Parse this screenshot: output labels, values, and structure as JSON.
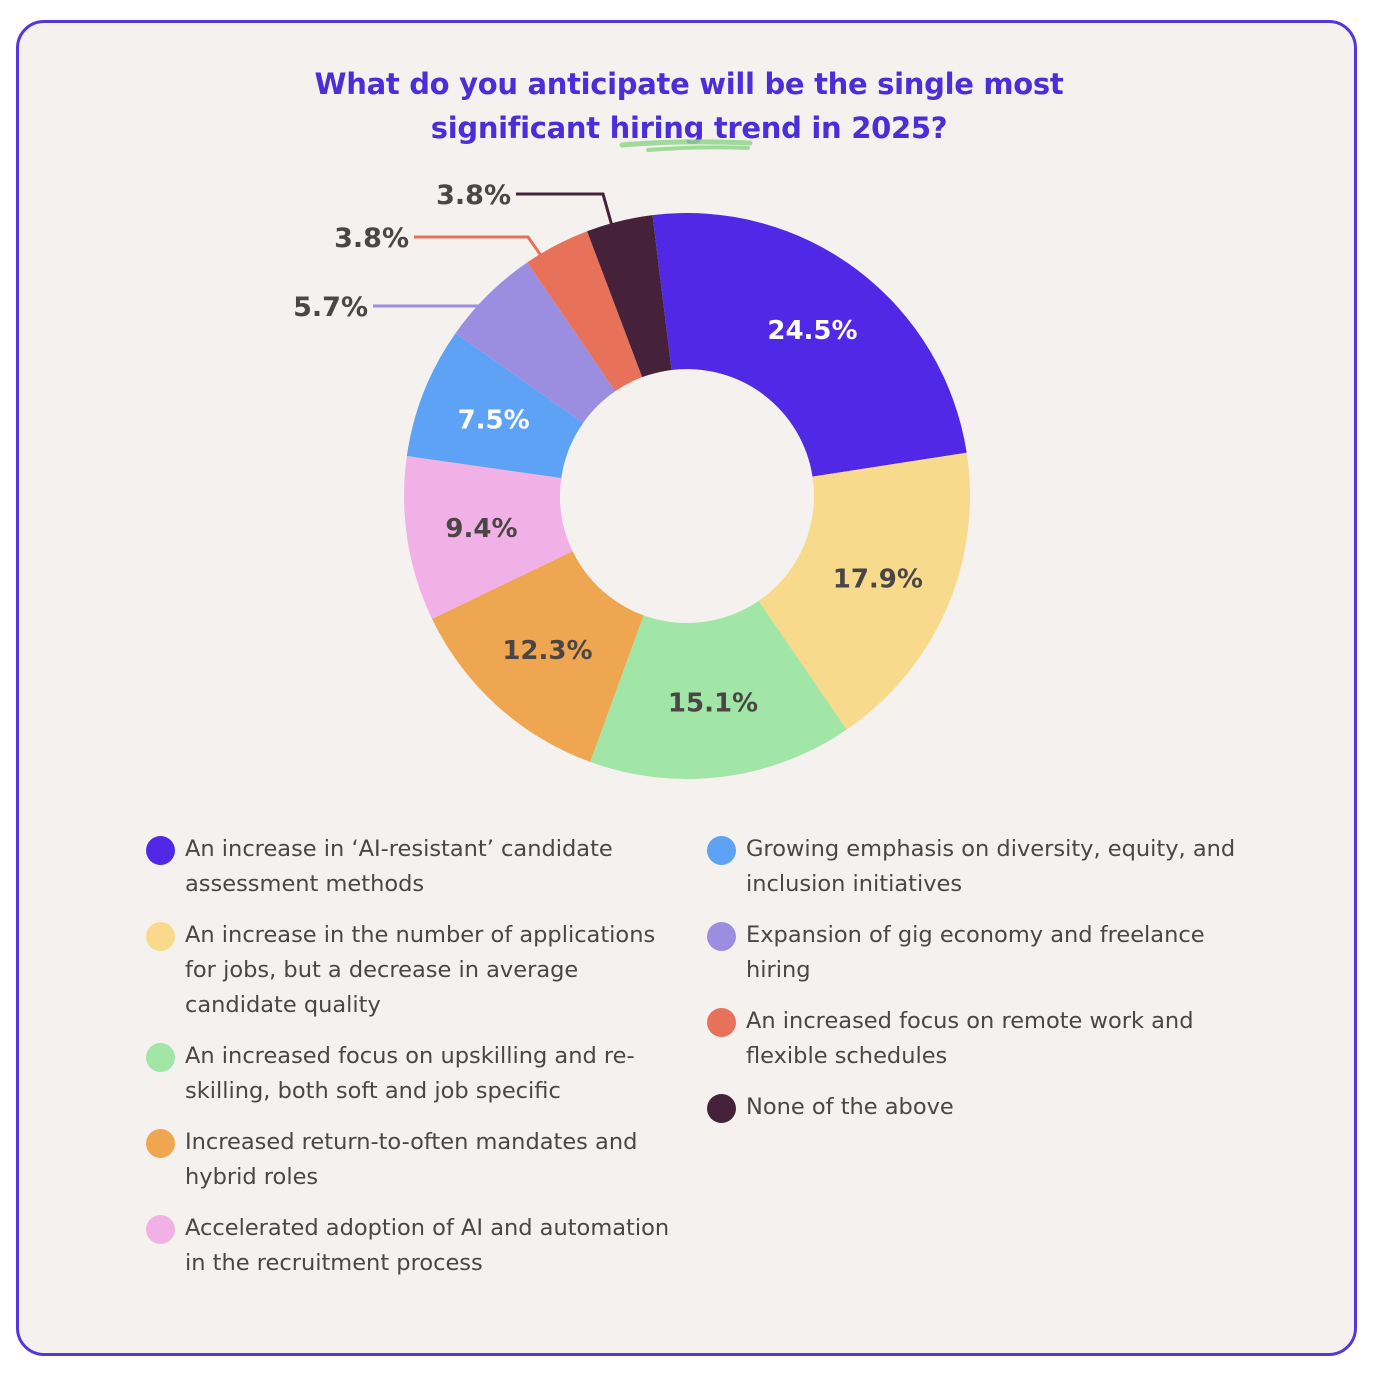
{
  "title": {
    "line1": "What do you anticipate will be the single most",
    "line2_prefix": "significant ",
    "line2_highlight": "hiring trend",
    "line2_suffix": " in 2025?"
  },
  "colors": {
    "title": "#4a2fd8",
    "border": "#5436dc",
    "background": "#f4f1ee",
    "underline": "#8fd68a"
  },
  "chart_data": {
    "type": "pie",
    "subtype": "donut",
    "title": "What do you anticipate will be the single most significant hiring trend in 2025?",
    "categories": [
      "An increase in 'AI-resistant' candidate assessment methods",
      "An increase in the number of applications for jobs, but a decrease in average candidate quality",
      "An increased focus on upskilling and re-skilling, both soft and job specific",
      "Increased return-to-often mandates and hybrid roles",
      "Accelerated adoption of AI and automation in the recruitment process",
      "Growing emphasis on diversity, equity, and inclusion initiatives",
      "Expansion of gig economy and freelance hiring",
      "An increased focus on remote work and flexible schedules",
      "None of the above"
    ],
    "values": [
      24.5,
      17.9,
      15.1,
      12.3,
      9.4,
      7.5,
      5.7,
      3.8,
      3.8
    ],
    "labels": [
      "24.5%",
      "17.9%",
      "15.1%",
      "12.3%",
      "9.4%",
      "7.5%",
      "5.7%",
      "3.8%",
      "3.8%"
    ],
    "colors": [
      "#5128e6",
      "#f7da8c",
      "#a1e6a6",
      "#efa650",
      "#f1b1e6",
      "#5ea2f5",
      "#9b8ee0",
      "#e8715a",
      "#46223a"
    ],
    "label_colors": [
      "#ffffff",
      "#4a4646",
      "#4a4646",
      "#4a4646",
      "#4a4646",
      "#ffffff",
      "#4a4646",
      "#4a4646",
      "#4a4646"
    ],
    "label_outside": [
      false,
      false,
      false,
      false,
      false,
      false,
      true,
      true,
      true
    ],
    "legend_position": "bottom, two columns",
    "start_angle_deg": -7,
    "direction": "clockwise"
  },
  "legend": {
    "col1": [
      {
        "label": "An increase in ‘AI-resistant’ candidate assessment methods",
        "color": "#5128e6"
      },
      {
        "label": "An increase in the number of applications for jobs, but a decrease in average candidate quality",
        "color": "#f7da8c"
      },
      {
        "label": "An increased focus on upskilling and re-skilling, both soft and job specific",
        "color": "#a1e6a6"
      },
      {
        "label": "Increased return-to-often mandates and hybrid roles",
        "color": "#efa650"
      },
      {
        "label": "Accelerated adoption of AI and automation in the recruitment process",
        "color": "#f1b1e6"
      }
    ],
    "col2": [
      {
        "label": "Growing emphasis on diversity, equity, and inclusion initiatives",
        "color": "#5ea2f5"
      },
      {
        "label": "Expansion of gig economy and freelance hiring",
        "color": "#9b8ee0"
      },
      {
        "label": "An increased focus on remote work and flexible schedules",
        "color": "#e8715a"
      },
      {
        "label": "None of the above",
        "color": "#46223a"
      }
    ]
  }
}
